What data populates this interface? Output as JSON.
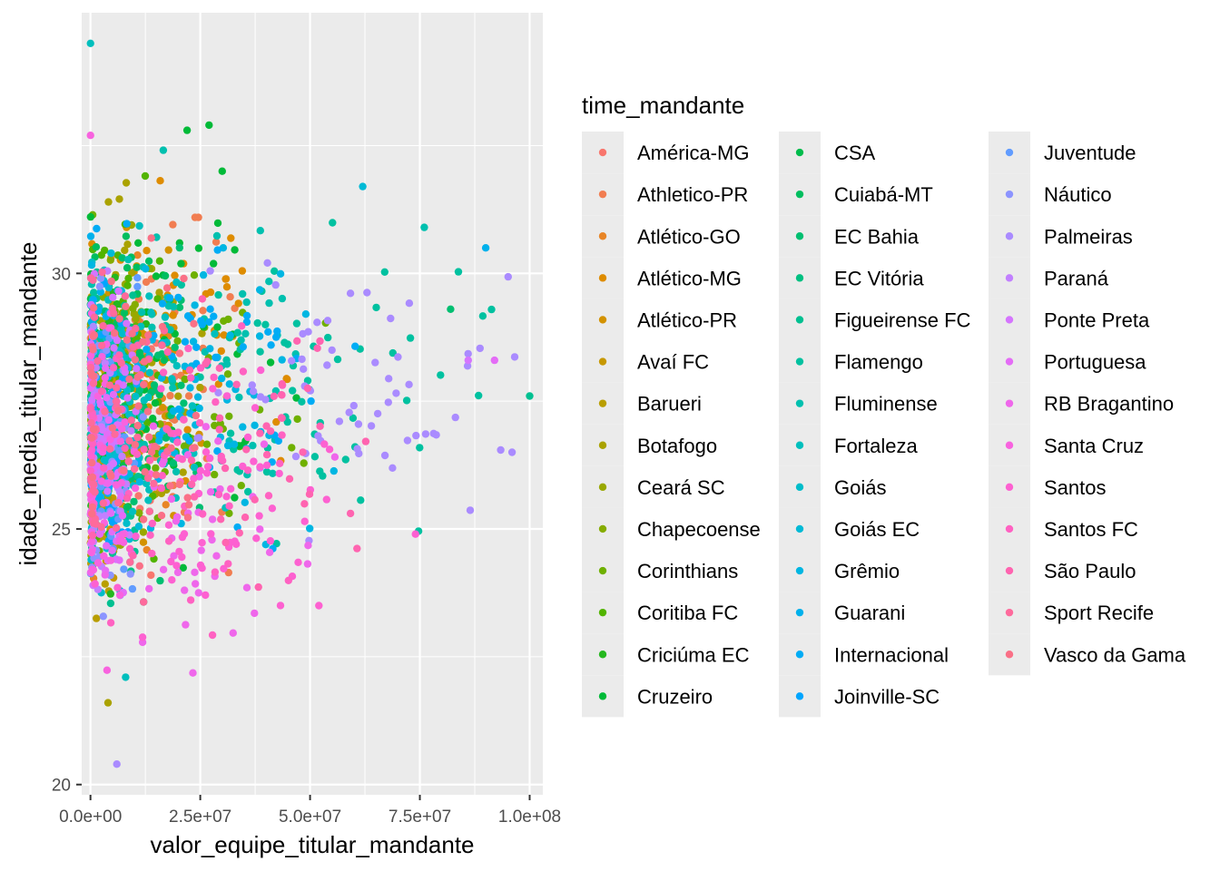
{
  "chart_data": {
    "type": "scatter",
    "title": "",
    "xlabel": "valor_equipe_titular_mandante",
    "ylabel": "idade_media_titular_mandante",
    "xlim": [
      -2000000,
      103000000
    ],
    "ylim": [
      19.8,
      35.1
    ],
    "x_ticks": [
      0,
      25000000,
      50000000,
      75000000,
      100000000
    ],
    "x_tick_labels": [
      "0.0e+00",
      "2.5e+07",
      "5.0e+07",
      "7.5e+07",
      "1.0e+08"
    ],
    "y_ticks": [
      20,
      25,
      30
    ],
    "y_tick_labels": [
      "20",
      "25",
      "30"
    ],
    "grid": true,
    "panel_background": "#ebebeb",
    "legend": {
      "title": "time_mandante",
      "placement": "right",
      "key_background": "#ebebeb"
    },
    "series": [
      {
        "name": "América-MG",
        "color": "#F8766D",
        "x_center": 8000000,
        "x_spread": 6000000,
        "y_center": 27.0,
        "y_spread": 1.3,
        "n": 60
      },
      {
        "name": "Athletico-PR",
        "color": "#F17D51",
        "x_center": 15000000,
        "x_spread": 10000000,
        "y_center": 27.8,
        "y_spread": 1.4,
        "n": 55
      },
      {
        "name": "Atlético-GO",
        "color": "#E88526",
        "x_center": 7000000,
        "x_spread": 5000000,
        "y_center": 27.2,
        "y_spread": 1.5,
        "n": 55
      },
      {
        "name": "Atlético-MG",
        "color": "#DE8C00",
        "x_center": 22000000,
        "x_spread": 12000000,
        "y_center": 28.2,
        "y_spread": 1.4,
        "n": 60
      },
      {
        "name": "Atlético-PR",
        "color": "#D39200",
        "x_center": 10000000,
        "x_spread": 7000000,
        "y_center": 27.5,
        "y_spread": 1.4,
        "n": 55
      },
      {
        "name": "Avaí FC",
        "color": "#C79800",
        "x_center": 4000000,
        "x_spread": 3000000,
        "y_center": 26.8,
        "y_spread": 1.5,
        "n": 55
      },
      {
        "name": "Barueri",
        "color": "#B99E00",
        "x_center": 3000000,
        "x_spread": 2000000,
        "y_center": 26.4,
        "y_spread": 1.4,
        "n": 40
      },
      {
        "name": "Botafogo",
        "color": "#AAA200",
        "x_center": 10000000,
        "x_spread": 7000000,
        "y_center": 28.0,
        "y_spread": 1.5,
        "n": 60
      },
      {
        "name": "Ceará SC",
        "color": "#99A800",
        "x_center": 6000000,
        "x_spread": 4000000,
        "y_center": 27.5,
        "y_spread": 1.5,
        "n": 55
      },
      {
        "name": "Chapecoense",
        "color": "#86AC00",
        "x_center": 7000000,
        "x_spread": 5000000,
        "y_center": 27.8,
        "y_spread": 1.4,
        "n": 55
      },
      {
        "name": "Corinthians",
        "color": "#6FB000",
        "x_center": 25000000,
        "x_spread": 14000000,
        "y_center": 27.5,
        "y_spread": 1.4,
        "n": 60
      },
      {
        "name": "Coritiba FC",
        "color": "#52B400",
        "x_center": 8000000,
        "x_spread": 6000000,
        "y_center": 27.8,
        "y_spread": 1.4,
        "n": 55
      },
      {
        "name": "Criciúma EC",
        "color": "#25B71F",
        "x_center": 5000000,
        "x_spread": 3000000,
        "y_center": 27.5,
        "y_spread": 1.5,
        "n": 45
      },
      {
        "name": "Cruzeiro",
        "color": "#00BA38",
        "x_center": 22000000,
        "x_spread": 12000000,
        "y_center": 28.5,
        "y_spread": 1.4,
        "n": 60
      },
      {
        "name": "CSA",
        "color": "#00BC4C",
        "x_center": 4000000,
        "x_spread": 3000000,
        "y_center": 27.8,
        "y_spread": 1.4,
        "n": 40
      },
      {
        "name": "Cuiabá-MT",
        "color": "#00BE5F",
        "x_center": 8000000,
        "x_spread": 5000000,
        "y_center": 28.0,
        "y_spread": 1.4,
        "n": 40
      },
      {
        "name": "EC Bahia",
        "color": "#00BF71",
        "x_center": 12000000,
        "x_spread": 8000000,
        "y_center": 27.3,
        "y_spread": 1.4,
        "n": 55
      },
      {
        "name": "EC Vitória",
        "color": "#00C081",
        "x_center": 8000000,
        "x_spread": 6000000,
        "y_center": 27.0,
        "y_spread": 1.5,
        "n": 55
      },
      {
        "name": "Figueirense FC",
        "color": "#00C091",
        "x_center": 5000000,
        "x_spread": 4000000,
        "y_center": 27.0,
        "y_spread": 1.5,
        "n": 55
      },
      {
        "name": "Flamengo",
        "color": "#00C1A0",
        "x_center": 50000000,
        "x_spread": 22000000,
        "y_center": 27.8,
        "y_spread": 1.4,
        "n": 70
      },
      {
        "name": "Fluminense",
        "color": "#00C0AF",
        "x_center": 25000000,
        "x_spread": 14000000,
        "y_center": 28.3,
        "y_spread": 1.5,
        "n": 60
      },
      {
        "name": "Fortaleza",
        "color": "#00BFBD",
        "x_center": 12000000,
        "x_spread": 8000000,
        "y_center": 27.5,
        "y_spread": 1.4,
        "n": 55
      },
      {
        "name": "Goiás",
        "color": "#00BDCA",
        "x_center": 6000000,
        "x_spread": 4000000,
        "y_center": 27.2,
        "y_spread": 1.5,
        "n": 55
      },
      {
        "name": "Goiás EC",
        "color": "#00BAD6",
        "x_center": 5000000,
        "x_spread": 4000000,
        "y_center": 27.0,
        "y_spread": 1.5,
        "n": 50
      },
      {
        "name": "Grêmio",
        "color": "#00B6E2",
        "x_center": 28000000,
        "x_spread": 14000000,
        "y_center": 27.5,
        "y_spread": 1.4,
        "n": 60
      },
      {
        "name": "Guarani",
        "color": "#00B1EC",
        "x_center": 3000000,
        "x_spread": 2000000,
        "y_center": 27.0,
        "y_spread": 1.5,
        "n": 40
      },
      {
        "name": "Internacional",
        "color": "#00ACF5",
        "x_center": 25000000,
        "x_spread": 13000000,
        "y_center": 27.8,
        "y_spread": 1.4,
        "n": 60
      },
      {
        "name": "Joinville-SC",
        "color": "#00A5FE",
        "x_center": 4000000,
        "x_spread": 3000000,
        "y_center": 26.8,
        "y_spread": 1.4,
        "n": 40
      },
      {
        "name": "Juventude",
        "color": "#619CFF",
        "x_center": 5000000,
        "x_spread": 3000000,
        "y_center": 26.8,
        "y_spread": 1.4,
        "n": 40
      },
      {
        "name": "Náutico",
        "color": "#8C94FF",
        "x_center": 4000000,
        "x_spread": 3000000,
        "y_center": 26.5,
        "y_spread": 1.5,
        "n": 40
      },
      {
        "name": "Palmeiras",
        "color": "#AA8BFF",
        "x_center": 60000000,
        "x_spread": 22000000,
        "y_center": 27.8,
        "y_spread": 1.4,
        "n": 70
      },
      {
        "name": "Paraná",
        "color": "#C280FF",
        "x_center": 4000000,
        "x_spread": 3000000,
        "y_center": 26.5,
        "y_spread": 1.4,
        "n": 40
      },
      {
        "name": "Ponte Preta",
        "color": "#D575FE",
        "x_center": 5000000,
        "x_spread": 3000000,
        "y_center": 27.0,
        "y_spread": 1.5,
        "n": 50
      },
      {
        "name": "Portuguesa",
        "color": "#E46CF6",
        "x_center": 4000000,
        "x_spread": 3000000,
        "y_center": 26.5,
        "y_spread": 1.4,
        "n": 40
      },
      {
        "name": "RB Bragantino",
        "color": "#EF67EB",
        "x_center": 25000000,
        "x_spread": 12000000,
        "y_center": 25.2,
        "y_spread": 1.2,
        "n": 55
      },
      {
        "name": "Santa Cruz",
        "color": "#F863DF",
        "x_center": 4000000,
        "x_spread": 3000000,
        "y_center": 26.8,
        "y_spread": 1.5,
        "n": 45
      },
      {
        "name": "Santos",
        "color": "#FD61D1",
        "x_center": 30000000,
        "x_spread": 15000000,
        "y_center": 25.8,
        "y_spread": 1.3,
        "n": 65
      },
      {
        "name": "Santos FC",
        "color": "#FF62C2",
        "x_center": 22000000,
        "x_spread": 12000000,
        "y_center": 26.0,
        "y_spread": 1.3,
        "n": 55
      },
      {
        "name": "São Paulo",
        "color": "#FF64B0",
        "x_center": 35000000,
        "x_spread": 16000000,
        "y_center": 26.5,
        "y_spread": 1.4,
        "n": 60
      },
      {
        "name": "Sport Recife",
        "color": "#FE6A9C",
        "x_center": 8000000,
        "x_spread": 6000000,
        "y_center": 27.0,
        "y_spread": 1.5,
        "n": 55
      },
      {
        "name": "Vasco da Gama",
        "color": "#FA7087",
        "x_center": 12000000,
        "x_spread": 8000000,
        "y_center": 27.5,
        "y_spread": 1.4,
        "n": 55
      }
    ],
    "notable_points": [
      {
        "x": 0,
        "y": 34.5,
        "color": "#00BFBD"
      },
      {
        "x": 22000000,
        "y": 32.8,
        "color": "#00BA38"
      },
      {
        "x": 27000000,
        "y": 32.9,
        "color": "#00BA38"
      },
      {
        "x": 62000000,
        "y": 31.7,
        "color": "#00BAD6"
      },
      {
        "x": 76000000,
        "y": 30.9,
        "color": "#00C0AF"
      },
      {
        "x": 90000000,
        "y": 30.5,
        "color": "#00B1EC"
      },
      {
        "x": 100000000,
        "y": 27.6,
        "color": "#00C091"
      },
      {
        "x": 96000000,
        "y": 26.5,
        "color": "#AA8BFF"
      },
      {
        "x": 6000000,
        "y": 20.4,
        "color": "#AA8BFF"
      },
      {
        "x": 4000000,
        "y": 21.6,
        "color": "#AAA200"
      },
      {
        "x": 8000000,
        "y": 22.1,
        "color": "#00BFBD"
      },
      {
        "x": 52000000,
        "y": 23.5,
        "color": "#FD61D1"
      },
      {
        "x": 74000000,
        "y": 24.9,
        "color": "#FD61D1"
      },
      {
        "x": 0,
        "y": 32.7,
        "color": "#F863DF"
      },
      {
        "x": 30000000,
        "y": 32.0,
        "color": "#00BA38"
      },
      {
        "x": 82000000,
        "y": 29.3,
        "color": "#00BF71"
      },
      {
        "x": 86000000,
        "y": 28.3,
        "color": "#D575FE"
      },
      {
        "x": 92000000,
        "y": 28.3,
        "color": "#E46CF6"
      }
    ]
  }
}
